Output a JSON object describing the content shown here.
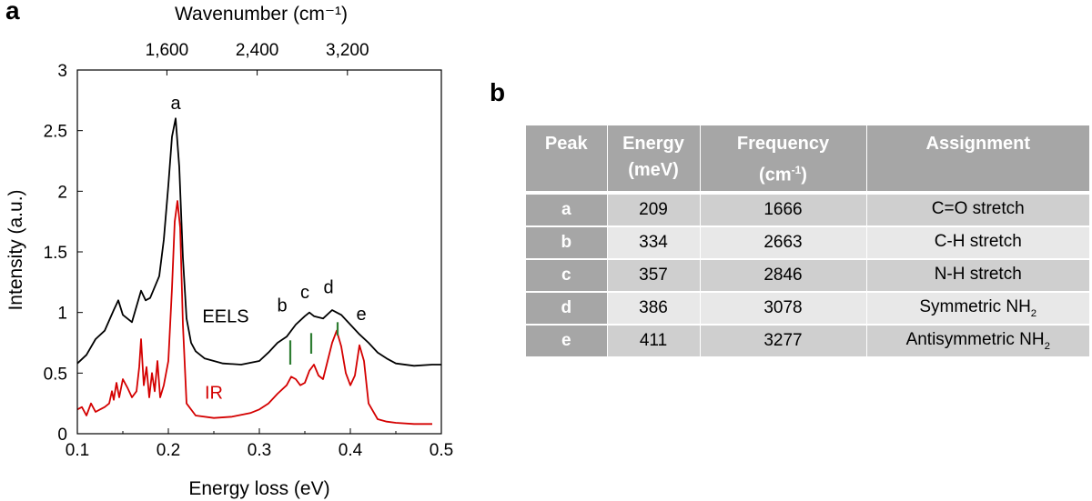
{
  "panels": {
    "a": "a",
    "b": "b"
  },
  "chart_data": {
    "type": "line",
    "title": "",
    "xlabel": "Energy loss (eV)",
    "ylabel": "Intensity (a.u.)",
    "top_xlabel": "Wavenumber (cm⁻¹)",
    "xlim": [
      0.1,
      0.5
    ],
    "ylim": [
      0,
      3
    ],
    "xticks": [
      0.1,
      0.2,
      0.3,
      0.4,
      0.5
    ],
    "xtick_labels": [
      "0.1",
      "0.2",
      "0.3",
      "0.4",
      "0.5"
    ],
    "yticks": [
      0,
      0.5,
      1,
      1.5,
      2,
      2.5,
      3
    ],
    "ytick_labels": [
      "0",
      "0.5",
      "1",
      "1.5",
      "2",
      "2.5",
      "3"
    ],
    "top_ticks": [
      1600,
      2400,
      3200
    ],
    "top_tick_labels": [
      "1,600",
      "2,400",
      "3,200"
    ],
    "top_tick_positions_ev": [
      0.1984,
      0.2976,
      0.3968
    ],
    "grid": false,
    "series": [
      {
        "name": "EELS",
        "color": "#000000",
        "x": [
          0.1,
          0.11,
          0.12,
          0.13,
          0.14,
          0.145,
          0.15,
          0.16,
          0.165,
          0.17,
          0.175,
          0.18,
          0.19,
          0.195,
          0.2,
          0.204,
          0.208,
          0.212,
          0.216,
          0.22,
          0.225,
          0.23,
          0.24,
          0.25,
          0.26,
          0.28,
          0.3,
          0.31,
          0.32,
          0.33,
          0.34,
          0.35,
          0.355,
          0.36,
          0.37,
          0.38,
          0.385,
          0.39,
          0.4,
          0.41,
          0.42,
          0.43,
          0.44,
          0.45,
          0.47,
          0.49,
          0.5
        ],
        "values": [
          0.58,
          0.65,
          0.78,
          0.85,
          1.02,
          1.1,
          0.98,
          0.92,
          1.05,
          1.18,
          1.1,
          1.12,
          1.3,
          1.6,
          2.05,
          2.45,
          2.6,
          2.2,
          1.45,
          0.95,
          0.75,
          0.68,
          0.62,
          0.6,
          0.58,
          0.57,
          0.6,
          0.67,
          0.75,
          0.8,
          0.9,
          0.97,
          1.0,
          0.97,
          0.95,
          1.02,
          1.0,
          0.98,
          0.9,
          0.82,
          0.75,
          0.67,
          0.62,
          0.58,
          0.56,
          0.57,
          0.57
        ]
      },
      {
        "name": "IR",
        "color": "#d40000",
        "x": [
          0.1,
          0.105,
          0.11,
          0.115,
          0.12,
          0.125,
          0.13,
          0.135,
          0.138,
          0.14,
          0.143,
          0.146,
          0.15,
          0.155,
          0.16,
          0.165,
          0.168,
          0.17,
          0.173,
          0.176,
          0.179,
          0.182,
          0.185,
          0.188,
          0.191,
          0.195,
          0.2,
          0.204,
          0.207,
          0.21,
          0.213,
          0.216,
          0.22,
          0.23,
          0.25,
          0.27,
          0.29,
          0.3,
          0.31,
          0.32,
          0.33,
          0.335,
          0.34,
          0.345,
          0.35,
          0.355,
          0.36,
          0.365,
          0.37,
          0.375,
          0.38,
          0.385,
          0.39,
          0.395,
          0.4,
          0.405,
          0.41,
          0.415,
          0.42,
          0.43,
          0.44,
          0.45,
          0.47,
          0.49
        ],
        "values": [
          0.2,
          0.22,
          0.15,
          0.25,
          0.18,
          0.2,
          0.22,
          0.25,
          0.35,
          0.28,
          0.42,
          0.3,
          0.45,
          0.38,
          0.3,
          0.35,
          0.55,
          0.78,
          0.4,
          0.55,
          0.3,
          0.5,
          0.35,
          0.6,
          0.3,
          0.4,
          0.6,
          1.2,
          1.75,
          1.92,
          1.7,
          0.9,
          0.25,
          0.15,
          0.13,
          0.14,
          0.17,
          0.2,
          0.25,
          0.33,
          0.4,
          0.47,
          0.45,
          0.4,
          0.42,
          0.52,
          0.57,
          0.48,
          0.45,
          0.6,
          0.75,
          0.85,
          0.72,
          0.5,
          0.4,
          0.48,
          0.73,
          0.6,
          0.25,
          0.12,
          0.1,
          0.09,
          0.08,
          0.08
        ]
      }
    ],
    "series_labels": [
      {
        "text": "EELS",
        "x": 0.263,
        "y": 0.97,
        "color": "#000000"
      },
      {
        "text": "IR",
        "x": 0.25,
        "y": 0.34,
        "color": "#d40000"
      }
    ],
    "peak_labels": [
      {
        "text": "a",
        "x": 0.208,
        "y": 2.73
      },
      {
        "text": "b",
        "x": 0.325,
        "y": 1.06
      },
      {
        "text": "c",
        "x": 0.35,
        "y": 1.17
      },
      {
        "text": "d",
        "x": 0.376,
        "y": 1.21
      },
      {
        "text": "e",
        "x": 0.412,
        "y": 0.99
      }
    ],
    "markers": {
      "color": "#2e7d32",
      "items": [
        {
          "x": 0.334,
          "y0": 0.57,
          "y1": 0.77
        },
        {
          "x": 0.357,
          "y0": 0.66,
          "y1": 0.83
        },
        {
          "x": 0.386,
          "y0": 0.81,
          "y1": 0.92
        }
      ]
    }
  },
  "table": {
    "headers": [
      [
        "Peak"
      ],
      [
        "Energy",
        "(meV)"
      ],
      [
        "Frequency",
        "(cm",
        "-1",
        ")"
      ],
      [
        "Assignment"
      ]
    ],
    "rows": [
      {
        "peak": "a",
        "energy": "209",
        "frequency": "1666",
        "assignment": "C=O stretch",
        "sub": ""
      },
      {
        "peak": "b",
        "energy": "334",
        "frequency": "2663",
        "assignment": "C-H stretch",
        "sub": ""
      },
      {
        "peak": "c",
        "energy": "357",
        "frequency": "2846",
        "assignment": "N-H stretch",
        "sub": ""
      },
      {
        "peak": "d",
        "energy": "386",
        "frequency": "3078",
        "assignment": "Symmetric NH",
        "sub": "2"
      },
      {
        "peak": "e",
        "energy": "411",
        "frequency": "3277",
        "assignment": "Antisymmetric NH",
        "sub": "2"
      }
    ]
  }
}
